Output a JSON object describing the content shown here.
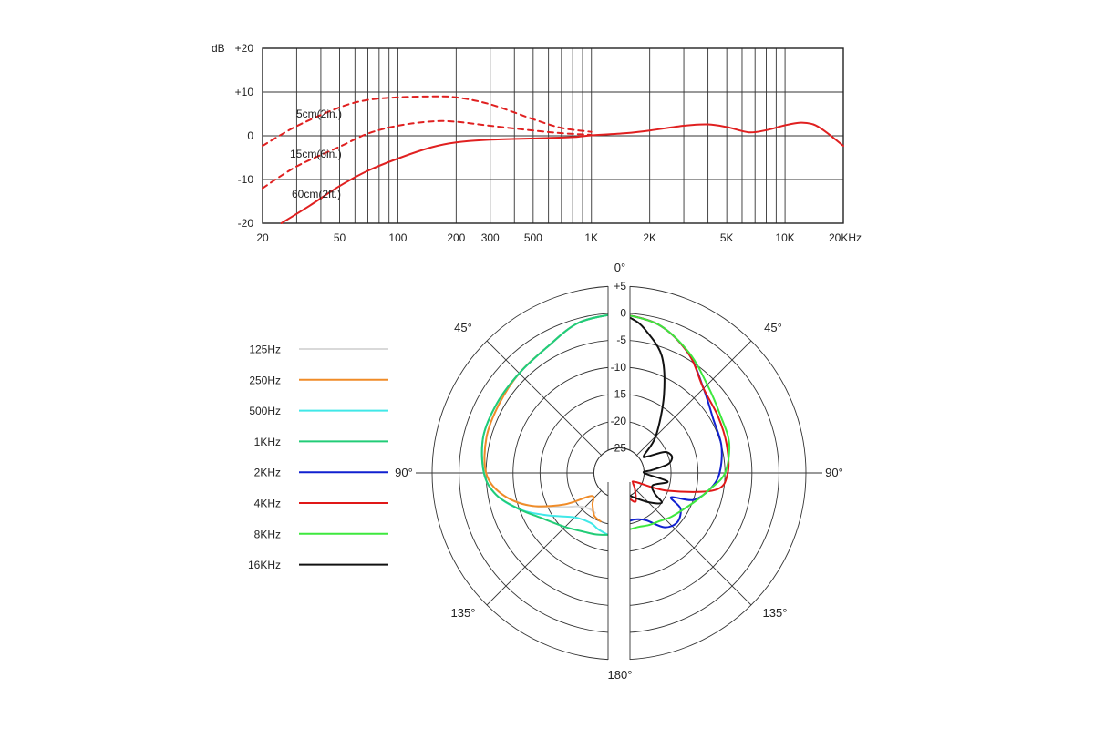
{
  "chart_data": [
    {
      "type": "line",
      "title": "",
      "xlabel": "",
      "ylabel": "dB",
      "x_scale": "log",
      "xlim": [
        20,
        20000
      ],
      "ylim": [
        -20,
        20
      ],
      "grid": true,
      "y_ticks": [
        20,
        10,
        0,
        -10,
        -20
      ],
      "y_tick_labels": [
        "+20",
        "+10",
        "0",
        "-10",
        "-20"
      ],
      "x_ticks": [
        20,
        50,
        100,
        200,
        300,
        500,
        1000,
        2000,
        5000,
        10000,
        20000
      ],
      "x_tick_labels": [
        "20",
        "50",
        "100",
        "200",
        "300",
        "500",
        "1K",
        "2K",
        "5K",
        "10K",
        "20KHz"
      ],
      "color": "#e02020",
      "series": [
        {
          "name": "5cm(2in.)",
          "style": "dashed",
          "x": [
            20,
            30,
            50,
            70,
            100,
            150,
            200,
            300,
            500,
            700,
            1000
          ],
          "y": [
            -2.3,
            2.2,
            6.5,
            8.2,
            8.8,
            9.0,
            8.8,
            7.2,
            3.8,
            1.8,
            0.9
          ]
        },
        {
          "name": "15cm(6in.)",
          "style": "dashed",
          "x": [
            20,
            30,
            50,
            70,
            100,
            150,
            200,
            300,
            500,
            700,
            1000
          ],
          "y": [
            -12,
            -7,
            -2.5,
            0.5,
            2.3,
            3.3,
            3.2,
            2.3,
            1.2,
            0.6,
            0.2
          ]
        },
        {
          "name": "60cm(2ft.)",
          "style": "solid",
          "x": [
            25,
            35,
            50,
            70,
            100,
            150,
            200,
            300,
            500,
            800,
            1000,
            1500,
            2000,
            3000,
            4000,
            5000,
            6500,
            8000,
            10000,
            12000,
            14000,
            16000,
            20000
          ],
          "y": [
            -20,
            -16,
            -11.5,
            -8,
            -5.2,
            -2.6,
            -1.5,
            -0.9,
            -0.6,
            -0.3,
            0.1,
            0.6,
            1.2,
            2.3,
            2.6,
            2.0,
            0.8,
            1.3,
            2.4,
            3.0,
            2.6,
            1.1,
            -2.3
          ]
        }
      ]
    },
    {
      "type": "polar",
      "title": "",
      "r_ticks": [
        5,
        0,
        -5,
        -10,
        -15,
        -20,
        -25
      ],
      "r_tick_labels": [
        "+5",
        "0",
        "-5",
        "-10",
        "-15",
        "-20",
        "-25"
      ],
      "angle_labels": [
        "0°",
        "45°",
        "45°",
        "90°",
        "90°",
        "135°",
        "135°",
        "180°"
      ],
      "grid": true,
      "legend_position": "left",
      "series": [
        {
          "name": "125Hz",
          "color": "#d9d9d9",
          "side": "left",
          "angles": [
            0,
            15,
            30,
            45,
            60,
            75,
            90,
            100,
            110,
            120,
            130,
            140,
            150
          ],
          "db": [
            0,
            -0.8,
            -2.8,
            -3.5,
            -4.0,
            -4.2,
            -5.0,
            -7.5,
            -12,
            -17,
            -20,
            -21,
            -21
          ]
        },
        {
          "name": "250Hz",
          "color": "#f08c28",
          "side": "left",
          "angles": [
            0,
            15,
            30,
            45,
            60,
            75,
            90,
            100,
            110,
            120,
            130,
            140,
            150,
            160
          ],
          "db": [
            0,
            -0.8,
            -2.8,
            -3.5,
            -4.0,
            -4.2,
            -5.0,
            -7.5,
            -12,
            -18,
            -23,
            -22,
            -20.5,
            -20
          ]
        },
        {
          "name": "500Hz",
          "color": "#40e8e8",
          "side": "left",
          "angles": [
            0,
            15,
            30,
            45,
            60,
            75,
            90,
            100,
            110,
            120,
            135,
            150,
            160,
            170
          ],
          "db": [
            0,
            -0.8,
            -2.8,
            -3.5,
            -3.6,
            -3.6,
            -4.6,
            -6.5,
            -10,
            -14,
            -18,
            -19,
            -18.5,
            -18
          ]
        },
        {
          "name": "1KHz",
          "color": "#22cc77",
          "side": "left",
          "angles": [
            0,
            15,
            30,
            45,
            60,
            75,
            90,
            100,
            110,
            120,
            135,
            150,
            160,
            170
          ],
          "db": [
            0,
            -0.8,
            -2.8,
            -3.5,
            -3.6,
            -3.6,
            -4.6,
            -6.5,
            -10,
            -13,
            -15.5,
            -17,
            -17.5,
            -18
          ]
        },
        {
          "name": "2KHz",
          "color": "#1020d0",
          "side": "right",
          "angles": [
            0,
            15,
            30,
            45,
            60,
            75,
            90,
            100,
            110,
            115,
            120,
            130,
            140,
            150,
            160,
            170
          ],
          "db": [
            0,
            -1.2,
            -4.0,
            -7.5,
            -9.5,
            -10,
            -11,
            -12.5,
            -15,
            -19,
            -16.5,
            -15.5,
            -16.5,
            -19.5,
            -20.5,
            -20.5
          ]
        },
        {
          "name": "4KHz",
          "color": "#e01818",
          "side": "right",
          "angles": [
            0,
            15,
            30,
            45,
            60,
            75,
            90,
            100,
            110,
            118,
            125,
            135,
            150,
            160,
            170
          ],
          "db": [
            0,
            -1.2,
            -4.0,
            -7.5,
            -8.5,
            -9,
            -9.5,
            -11.5,
            -20,
            -26,
            -26.5,
            -25.5,
            -23.5,
            -25,
            -27
          ]
        },
        {
          "name": "8KHz",
          "color": "#3ee83e",
          "side": "right",
          "angles": [
            0,
            15,
            30,
            45,
            60,
            75,
            90,
            100,
            110,
            120,
            130,
            140,
            150,
            160,
            170
          ],
          "db": [
            0,
            -1.2,
            -3.8,
            -6.5,
            -8.0,
            -8.5,
            -10,
            -12.5,
            -14.5,
            -16,
            -17,
            -18,
            -18.5,
            -19,
            -19
          ]
        },
        {
          "name": "16KHz",
          "color": "#111111",
          "side": "right",
          "angles": [
            0,
            5,
            10,
            20,
            30,
            45,
            55,
            60,
            65,
            70,
            75,
            80,
            85,
            90,
            100,
            110,
            120,
            125,
            135,
            150,
            160,
            165
          ],
          "db": [
            0,
            -1,
            -2.5,
            -6.5,
            -13,
            -20,
            -24,
            -23.5,
            -20.5,
            -19.5,
            -19.5,
            -20.5,
            -23.5,
            -25,
            -20.5,
            -23,
            -22,
            -20,
            -22,
            -24.5,
            -25.5,
            -25.5
          ]
        }
      ]
    }
  ]
}
